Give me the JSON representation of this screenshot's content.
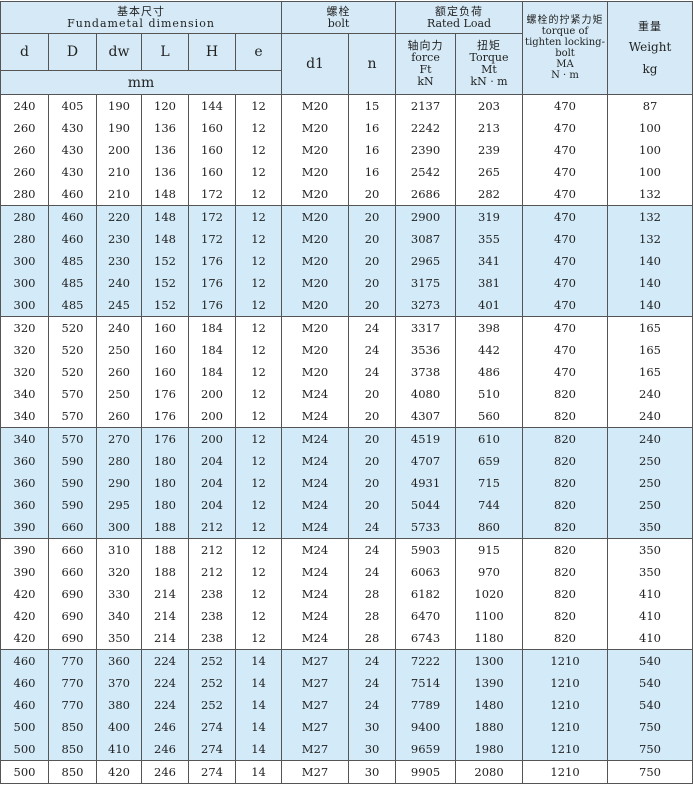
{
  "header": {
    "fundamental_cn": "基本尺寸",
    "fundamental_en": "Fundametal dimension",
    "bolt_cn": "螺栓",
    "bolt_en": "bolt",
    "rated_cn": "额定负荷",
    "rated_en": "Rated Load",
    "torque_tighten_cn": "螺栓的拧紧力矩",
    "torque_tighten_en": "torque of tighten locking-bolt",
    "torque_tighten_sym": "MA",
    "torque_tighten_unit": "N · m",
    "weight_cn": "重量",
    "weight_en": "Weight",
    "weight_unit": "kg",
    "col_d": "d",
    "col_D": "D",
    "col_dw": "dw",
    "col_L": "L",
    "col_H": "H",
    "col_e": "e",
    "dim_unit": "mm",
    "col_d1": "d1",
    "col_n": "n",
    "force_cn": "轴向力",
    "force_en": "force",
    "force_sym": "Ft",
    "force_unit": "kN",
    "torque_cn": "扭矩",
    "torque_en": "Torque",
    "torque_sym": "Mt",
    "torque_unit": "kN · m"
  },
  "rows": [
    [
      "240",
      "405",
      "190",
      "120",
      "144",
      "12",
      "M20",
      "15",
      "2137",
      "203",
      "470",
      "87"
    ],
    [
      "260",
      "430",
      "190",
      "136",
      "160",
      "12",
      "M20",
      "16",
      "2242",
      "213",
      "470",
      "100"
    ],
    [
      "260",
      "430",
      "200",
      "136",
      "160",
      "12",
      "M20",
      "16",
      "2390",
      "239",
      "470",
      "100"
    ],
    [
      "260",
      "430",
      "210",
      "136",
      "160",
      "12",
      "M20",
      "16",
      "2542",
      "265",
      "470",
      "100"
    ],
    [
      "280",
      "460",
      "210",
      "148",
      "172",
      "12",
      "M20",
      "20",
      "2686",
      "282",
      "470",
      "132"
    ],
    [
      "280",
      "460",
      "220",
      "148",
      "172",
      "12",
      "M20",
      "20",
      "2900",
      "319",
      "470",
      "132"
    ],
    [
      "280",
      "460",
      "230",
      "148",
      "172",
      "12",
      "M20",
      "20",
      "3087",
      "355",
      "470",
      "132"
    ],
    [
      "300",
      "485",
      "230",
      "152",
      "176",
      "12",
      "M20",
      "20",
      "2965",
      "341",
      "470",
      "140"
    ],
    [
      "300",
      "485",
      "240",
      "152",
      "176",
      "12",
      "M20",
      "20",
      "3175",
      "381",
      "470",
      "140"
    ],
    [
      "300",
      "485",
      "245",
      "152",
      "176",
      "12",
      "M20",
      "20",
      "3273",
      "401",
      "470",
      "140"
    ],
    [
      "320",
      "520",
      "240",
      "160",
      "184",
      "12",
      "M20",
      "24",
      "3317",
      "398",
      "470",
      "165"
    ],
    [
      "320",
      "520",
      "250",
      "160",
      "184",
      "12",
      "M20",
      "24",
      "3536",
      "442",
      "470",
      "165"
    ],
    [
      "320",
      "520",
      "260",
      "160",
      "184",
      "12",
      "M20",
      "24",
      "3738",
      "486",
      "470",
      "165"
    ],
    [
      "340",
      "570",
      "250",
      "176",
      "200",
      "12",
      "M24",
      "20",
      "4080",
      "510",
      "820",
      "240"
    ],
    [
      "340",
      "570",
      "260",
      "176",
      "200",
      "12",
      "M24",
      "20",
      "4307",
      "560",
      "820",
      "240"
    ],
    [
      "340",
      "570",
      "270",
      "176",
      "200",
      "12",
      "M24",
      "20",
      "4519",
      "610",
      "820",
      "240"
    ],
    [
      "360",
      "590",
      "280",
      "180",
      "204",
      "12",
      "M24",
      "20",
      "4707",
      "659",
      "820",
      "250"
    ],
    [
      "360",
      "590",
      "290",
      "180",
      "204",
      "12",
      "M24",
      "20",
      "4931",
      "715",
      "820",
      "250"
    ],
    [
      "360",
      "590",
      "295",
      "180",
      "204",
      "12",
      "M24",
      "20",
      "5044",
      "744",
      "820",
      "250"
    ],
    [
      "390",
      "660",
      "300",
      "188",
      "212",
      "12",
      "M24",
      "24",
      "5733",
      "860",
      "820",
      "350"
    ],
    [
      "390",
      "660",
      "310",
      "188",
      "212",
      "12",
      "M24",
      "24",
      "5903",
      "915",
      "820",
      "350"
    ],
    [
      "390",
      "660",
      "320",
      "188",
      "212",
      "12",
      "M24",
      "24",
      "6063",
      "970",
      "820",
      "350"
    ],
    [
      "420",
      "690",
      "330",
      "214",
      "238",
      "12",
      "M24",
      "28",
      "6182",
      "1020",
      "820",
      "410"
    ],
    [
      "420",
      "690",
      "340",
      "214",
      "238",
      "12",
      "M24",
      "28",
      "6470",
      "1100",
      "820",
      "410"
    ],
    [
      "420",
      "690",
      "350",
      "214",
      "238",
      "12",
      "M24",
      "28",
      "6743",
      "1180",
      "820",
      "410"
    ],
    [
      "460",
      "770",
      "360",
      "224",
      "252",
      "14",
      "M27",
      "24",
      "7222",
      "1300",
      "1210",
      "540"
    ],
    [
      "460",
      "770",
      "370",
      "224",
      "252",
      "14",
      "M27",
      "24",
      "7514",
      "1390",
      "1210",
      "540"
    ],
    [
      "460",
      "770",
      "380",
      "224",
      "252",
      "14",
      "M27",
      "24",
      "7789",
      "1480",
      "1210",
      "540"
    ],
    [
      "500",
      "850",
      "400",
      "246",
      "274",
      "14",
      "M27",
      "30",
      "9400",
      "1880",
      "1210",
      "750"
    ],
    [
      "500",
      "850",
      "410",
      "246",
      "274",
      "14",
      "M27",
      "30",
      "9659",
      "1980",
      "1210",
      "750"
    ],
    [
      "500",
      "850",
      "420",
      "246",
      "274",
      "14",
      "M27",
      "30",
      "9905",
      "2080",
      "1210",
      "750"
    ]
  ],
  "colors": {
    "header_bg": "#d5eaf6",
    "band_bg": "#d3ebf8"
  }
}
